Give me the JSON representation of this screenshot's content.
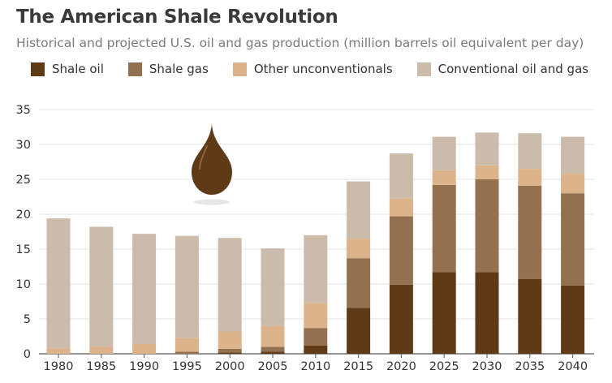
{
  "title": "The American Shale Revolution",
  "subtitle": "Historical and projected U.S. oil and gas production (million barrels oil equivalent per day)",
  "colors": {
    "shale_oil": "#5e3a17",
    "shale_gas": "#93704e",
    "other_unconventionals": "#dcb38b",
    "conventional": "#cbbbaa",
    "grid": "#e3e3e3",
    "drop": "#5e3a17"
  },
  "icon": "oil-drop-icon",
  "chart_data": {
    "type": "bar",
    "stacked": true,
    "title": "The American Shale Revolution",
    "subtitle": "Historical and projected U.S. oil and gas production (million barrels oil equivalent per day)",
    "xlabel": "",
    "ylabel": "",
    "ylim": [
      0,
      35
    ],
    "yticks": [
      0,
      5,
      10,
      15,
      20,
      25,
      30,
      35
    ],
    "grid": true,
    "legend_position": "top",
    "categories": [
      "1980",
      "1985",
      "1990",
      "1995",
      "2000",
      "2005",
      "2010",
      "2015",
      "2020",
      "2025",
      "2030",
      "2035",
      "2040"
    ],
    "series": [
      {
        "name": "Shale oil",
        "color_key": "shale_oil",
        "values": [
          0,
          0,
          0,
          0,
          0.2,
          0.3,
          1.2,
          6.6,
          9.9,
          11.7,
          11.7,
          10.7,
          9.8
        ]
      },
      {
        "name": "Shale gas",
        "color_key": "shale_gas",
        "values": [
          0,
          0,
          0,
          0.3,
          0.5,
          0.7,
          2.5,
          7.1,
          9.8,
          12.5,
          13.3,
          13.4,
          13.2
        ]
      },
      {
        "name": "Other unconventionals",
        "color_key": "other_unconventionals",
        "values": [
          0.8,
          1.0,
          1.4,
          2.0,
          2.5,
          3.0,
          3.6,
          2.8,
          2.6,
          2.1,
          2.0,
          2.4,
          2.8
        ]
      },
      {
        "name": "Conventional oil and gas",
        "color_key": "conventional",
        "values": [
          18.6,
          17.2,
          15.8,
          14.6,
          13.4,
          11.1,
          9.7,
          8.2,
          6.4,
          4.8,
          4.7,
          5.1,
          5.3
        ]
      }
    ]
  }
}
